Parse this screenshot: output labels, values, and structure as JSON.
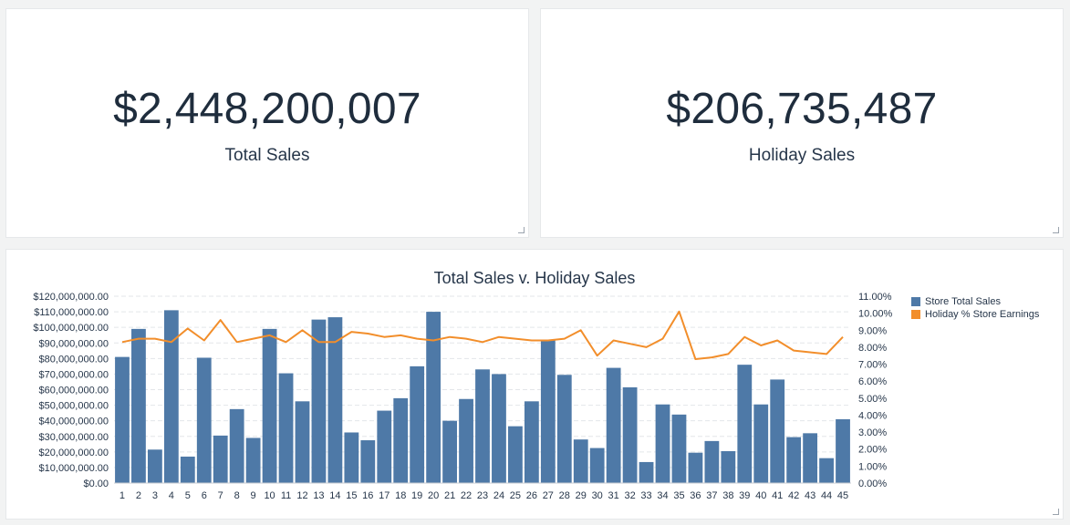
{
  "kpis": {
    "total_sales": {
      "value": "$2,448,200,007",
      "label": "Total Sales"
    },
    "holiday_sales": {
      "value": "$206,735,487",
      "label": "Holiday Sales"
    }
  },
  "colors": {
    "bar": "#4e79a7",
    "line": "#f28e2b",
    "grid": "#e3e6e9",
    "text": "#26364a"
  },
  "chart_data": {
    "type": "bar",
    "title": "Total Sales v. Holiday Sales",
    "xlabel": "",
    "ylabel": "",
    "categories": [
      "1",
      "2",
      "3",
      "4",
      "5",
      "6",
      "7",
      "8",
      "9",
      "10",
      "11",
      "12",
      "13",
      "14",
      "15",
      "16",
      "17",
      "18",
      "19",
      "20",
      "21",
      "22",
      "23",
      "24",
      "25",
      "26",
      "27",
      "28",
      "29",
      "30",
      "31",
      "32",
      "33",
      "34",
      "35",
      "36",
      "37",
      "38",
      "39",
      "40",
      "41",
      "42",
      "43",
      "44",
      "45"
    ],
    "ylim": [
      0,
      120000000
    ],
    "y2lim": [
      0,
      11
    ],
    "y_ticks": [
      "$0.00",
      "$10,000,000.00",
      "$20,000,000.00",
      "$30,000,000.00",
      "$40,000,000.00",
      "$50,000,000.00",
      "$60,000,000.00",
      "$70,000,000.00",
      "$80,000,000.00",
      "$90,000,000.00",
      "$100,000,000.00",
      "$110,000,000.00",
      "$120,000,000.00"
    ],
    "y2_ticks": [
      "0.00%",
      "1.00%",
      "2.00%",
      "3.00%",
      "4.00%",
      "5.00%",
      "6.00%",
      "7.00%",
      "8.00%",
      "9.00%",
      "10.00%",
      "11.00%"
    ],
    "grid": true,
    "legend_position": "right",
    "series": [
      {
        "name": "Store Total Sales",
        "kind": "bar",
        "axis": "left",
        "values": [
          81000000,
          99000000,
          21500000,
          111000000,
          17000000,
          80500000,
          30500000,
          47500000,
          29000000,
          99000000,
          70500000,
          52500000,
          105000000,
          106500000,
          32500000,
          27500000,
          46500000,
          54500000,
          75000000,
          110000000,
          40000000,
          54000000,
          73000000,
          70000000,
          36500000,
          52500000,
          92000000,
          69500000,
          28000000,
          22500000,
          74000000,
          61500000,
          13500000,
          50500000,
          44000000,
          19500000,
          27000000,
          20500000,
          76000000,
          50500000,
          66500000,
          29500000,
          32000000,
          16000000,
          41000000
        ]
      },
      {
        "name": "Holiday % Store Earnings",
        "kind": "line",
        "axis": "right",
        "values": [
          8.3,
          8.5,
          8.5,
          8.3,
          9.1,
          8.4,
          9.6,
          8.3,
          8.5,
          8.7,
          8.3,
          9.0,
          8.3,
          8.3,
          8.9,
          8.8,
          8.6,
          8.7,
          8.5,
          8.4,
          8.6,
          8.5,
          8.3,
          8.6,
          8.5,
          8.4,
          8.4,
          8.5,
          9.0,
          7.5,
          8.4,
          8.2,
          8.0,
          8.5,
          10.1,
          7.3,
          7.4,
          7.6,
          8.6,
          8.1,
          8.4,
          7.8,
          7.7,
          7.6,
          8.6
        ]
      }
    ]
  }
}
